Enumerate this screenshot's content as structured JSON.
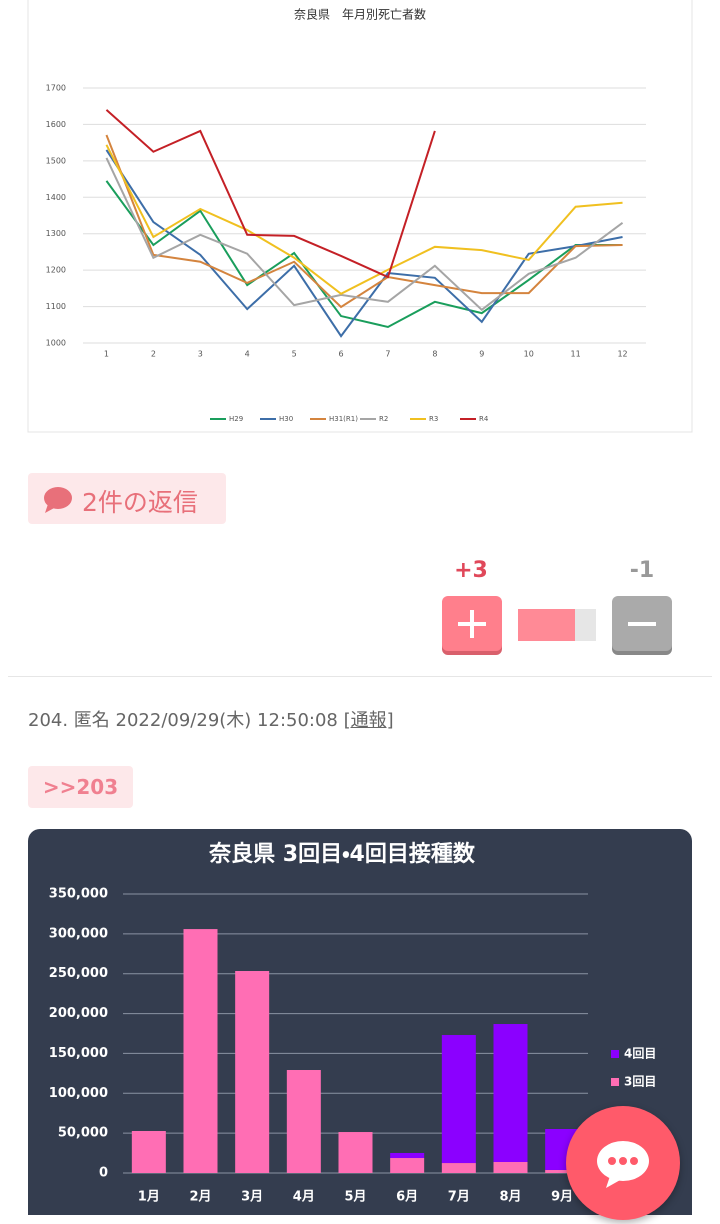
{
  "chart_data": [
    {
      "type": "line",
      "title": "奈良県　年月別死亡者数",
      "categories": [
        1,
        2,
        3,
        4,
        5,
        6,
        7,
        8,
        9,
        10,
        11,
        12
      ],
      "ylim": [
        1000,
        1700
      ],
      "yticks": [
        1000,
        1100,
        1200,
        1300,
        1400,
        1500,
        1600,
        1700
      ],
      "grid": true,
      "legend": "bottom",
      "series": [
        {
          "name": "H29",
          "color": "#1a9e5c",
          "values": [
            1445,
            1269,
            1363,
            1159,
            1247,
            1074,
            1044,
            1113,
            1082,
            1173,
            1269,
            1269
          ]
        },
        {
          "name": "H30",
          "color": "#3d6ea8",
          "values": [
            1530,
            1332,
            1242,
            1093,
            1212,
            1019,
            1192,
            1179,
            1058,
            1245,
            1266,
            1291
          ]
        },
        {
          "name": "H31(R1)",
          "color": "#d4843e",
          "values": [
            1571,
            1242,
            1223,
            1165,
            1223,
            1099,
            1181,
            1159,
            1137,
            1137,
            1266,
            1269
          ]
        },
        {
          "name": "R2",
          "color": "#a5a5a5",
          "values": [
            1508,
            1234,
            1297,
            1245,
            1104,
            1132,
            1113,
            1212,
            1091,
            1190,
            1234,
            1330
          ]
        },
        {
          "name": "R3",
          "color": "#f0c020",
          "values": [
            1544,
            1291,
            1368,
            1310,
            1234,
            1135,
            1201,
            1264,
            1255,
            1228,
            1374,
            1385
          ]
        },
        {
          "name": "R4",
          "color": "#c42026",
          "values": [
            1640,
            1525,
            1582,
            1297,
            1294,
            1239,
            1181,
            1582,
            null,
            null,
            null,
            null
          ]
        }
      ]
    },
    {
      "type": "bar",
      "stacked": true,
      "title": "奈良県 3回目・4回目接種数",
      "categories": [
        "1月",
        "2月",
        "3月",
        "4月",
        "5月",
        "6月",
        "7月",
        "8月",
        "9月"
      ],
      "ylim": [
        0,
        350000
      ],
      "yticks": [
        0,
        {
          "value": 50000,
          "label": "50,000"
        },
        {
          "value": 100000,
          "label": "100,000"
        },
        {
          "value": 150000,
          "label": "150,000"
        },
        {
          "value": 200000,
          "label": "200,000"
        },
        {
          "value": 250000,
          "label": "250,000"
        },
        {
          "value": 300000,
          "label": "300,000"
        },
        {
          "value": 350000,
          "label": "350,000"
        }
      ],
      "grid": true,
      "legend": "right",
      "series": [
        {
          "name": "3回目",
          "color": "#ff6eb4",
          "values": [
            52700,
            306000,
            253400,
            129200,
            51400,
            18800,
            12500,
            13800,
            3800
          ]
        },
        {
          "name": "4回目",
          "color": "#8b00ff",
          "values": [
            0,
            0,
            0,
            0,
            0,
            6300,
            160600,
            173100,
            51400
          ]
        }
      ]
    }
  ],
  "replies": {
    "label": "2件の返信"
  },
  "votes": {
    "plus": "+3",
    "minus": "-1"
  },
  "post": {
    "header": "204. 匿名 2022/09/29(木) 12:50:08",
    "report": "[通報]",
    "anchor": ">>203"
  }
}
